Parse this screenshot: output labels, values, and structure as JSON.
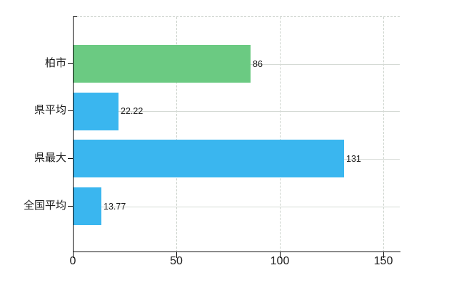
{
  "chart_data": {
    "type": "bar",
    "orientation": "horizontal",
    "title": "",
    "categories": [
      "柏市",
      "県平均",
      "県最大",
      "全国平均"
    ],
    "values": [
      86,
      22.22,
      131,
      13.77
    ],
    "value_labels": [
      "86",
      "22.22",
      "131",
      "13.77"
    ],
    "series": [
      {
        "name": "",
        "values": [
          86,
          22.22,
          131,
          13.77
        ]
      }
    ],
    "bar_colors": [
      "#6bca82",
      "#3ab6ef",
      "#3ab6ef",
      "#3ab6ef"
    ],
    "x_ticks": [
      0,
      50,
      100,
      150
    ],
    "x_tick_labels": [
      "0",
      "50",
      "100",
      "150"
    ],
    "xlim": [
      0,
      157.5
    ],
    "grid": {
      "vertical_style": "dashed",
      "horizontal_style": "solid",
      "color": "#d2d8d2"
    },
    "legend_position": "none"
  },
  "colors": {
    "background": "#ffffff",
    "axis": "#0f0f0f",
    "text": "#1c1c1c",
    "grid_solid": "#d5dad5",
    "grid_dashed": "#ccd3cc",
    "plot_top_border": "#c7cdc7",
    "bar_green": "#6bca82",
    "bar_cyan": "#3ab6ef"
  }
}
